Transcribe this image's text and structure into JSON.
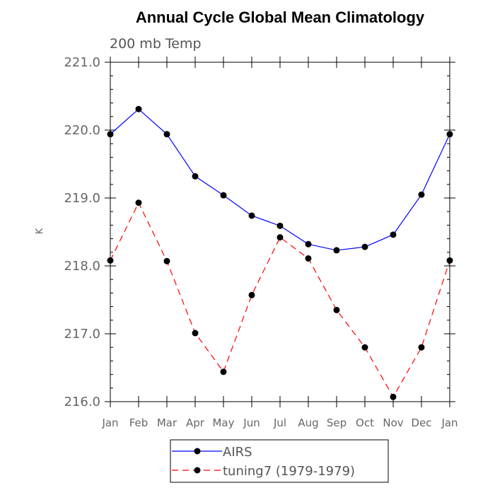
{
  "chart_data": {
    "type": "line",
    "title": "Annual Cycle Global Mean Climatology",
    "subtitle": "200 mb Temp",
    "xlabel": "",
    "ylabel": "K",
    "categories": [
      "Jan",
      "Feb",
      "Mar",
      "Apr",
      "May",
      "Jun",
      "Jul",
      "Aug",
      "Sep",
      "Oct",
      "Nov",
      "Dec",
      "Jan"
    ],
    "ylim": [
      216.0,
      221.0
    ],
    "yticks": [
      "216.0",
      "217.0",
      "218.0",
      "219.0",
      "220.0",
      "221.0"
    ],
    "grid": false,
    "legend_position": "bottom",
    "series": [
      {
        "name": "AIRS",
        "color": "#0000ff",
        "line_style": "solid",
        "marker": "filled-circle",
        "values": [
          219.94,
          220.31,
          219.94,
          219.32,
          219.04,
          218.74,
          218.59,
          218.32,
          218.23,
          218.28,
          218.46,
          219.05,
          219.94
        ]
      },
      {
        "name": "tuning7 (1979-1979)",
        "color": "#ff0000",
        "line_style": "dashed",
        "marker": "filled-circle",
        "values": [
          218.08,
          218.93,
          218.07,
          217.01,
          216.44,
          217.57,
          218.42,
          218.11,
          217.35,
          216.8,
          216.07,
          216.8,
          218.08
        ]
      }
    ]
  }
}
